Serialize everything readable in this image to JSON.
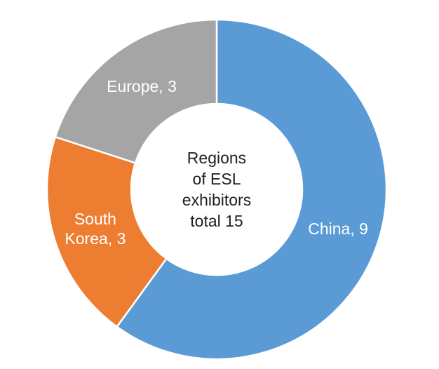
{
  "chart_data": {
    "type": "pie",
    "variant": "donut",
    "categories": [
      "China",
      "South Korea",
      "Europe"
    ],
    "values": [
      9,
      3,
      3
    ],
    "colors": [
      "#5B9BD5",
      "#ED7D31",
      "#A5A5A5"
    ],
    "data_labels": [
      "China, 9",
      "South\nKorea, 3",
      "Europe, 3"
    ],
    "center_text": [
      "Regions",
      "of ESL",
      "exhibitors",
      "total 15"
    ],
    "legend": "none"
  }
}
